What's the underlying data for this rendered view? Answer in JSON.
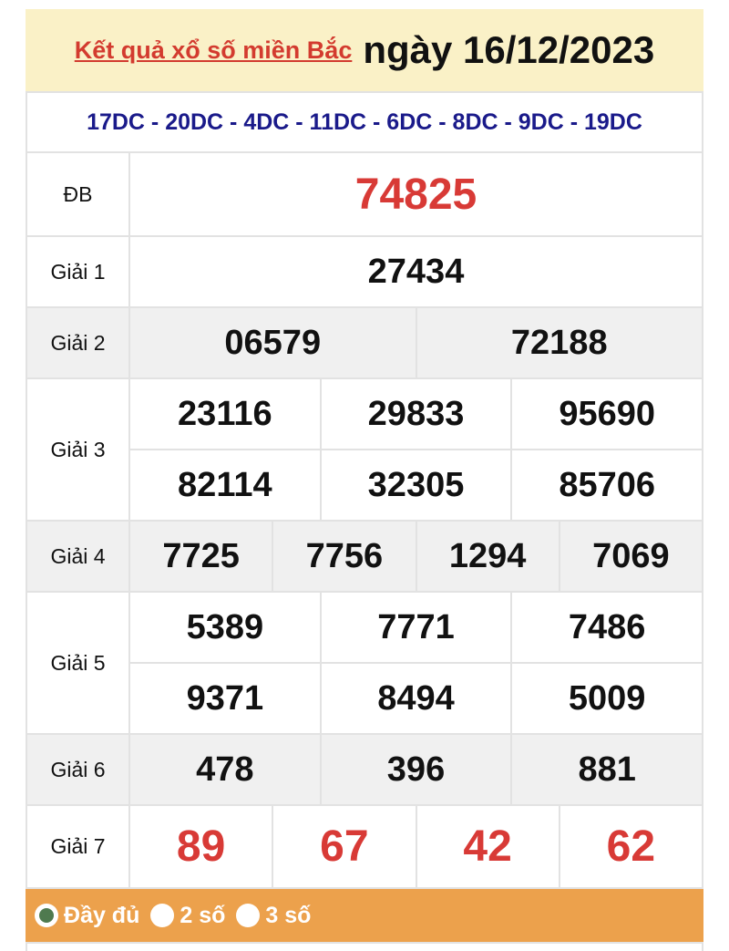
{
  "header": {
    "link": "Kết quả xổ số miền Bắc",
    "date": "ngày 16/12/2023"
  },
  "codes": "17DC - 20DC - 4DC - 11DC - 6DC - 8DC - 9DC - 19DC",
  "prizes": [
    {
      "label": "ĐB",
      "rows": [
        [
          "74825"
        ]
      ],
      "red": true
    },
    {
      "label": "Giải 1",
      "rows": [
        [
          "27434"
        ]
      ]
    },
    {
      "label": "Giải 2",
      "rows": [
        [
          "06579",
          "72188"
        ]
      ]
    },
    {
      "label": "Giải 3",
      "rows": [
        [
          "23116",
          "29833",
          "95690"
        ],
        [
          "82114",
          "32305",
          "85706"
        ]
      ]
    },
    {
      "label": "Giải 4",
      "rows": [
        [
          "7725",
          "7756",
          "1294",
          "7069"
        ]
      ]
    },
    {
      "label": "Giải 5",
      "rows": [
        [
          "5389",
          "7771",
          "7486"
        ],
        [
          "9371",
          "8494",
          "5009"
        ]
      ]
    },
    {
      "label": "Giải 6",
      "rows": [
        [
          "478",
          "396",
          "881"
        ]
      ]
    },
    {
      "label": "Giải 7",
      "rows": [
        [
          "89",
          "67",
          "42",
          "62"
        ]
      ],
      "red": true
    }
  ],
  "options": [
    {
      "label": "Đầy đủ",
      "selected": true
    },
    {
      "label": "2 số",
      "selected": false
    },
    {
      "label": "3 số",
      "selected": false
    }
  ],
  "colors": {
    "red": "#d83a36",
    "header_bg": "#faf1c7",
    "codes": "#1a1a8a",
    "bar": "#eca14c"
  }
}
